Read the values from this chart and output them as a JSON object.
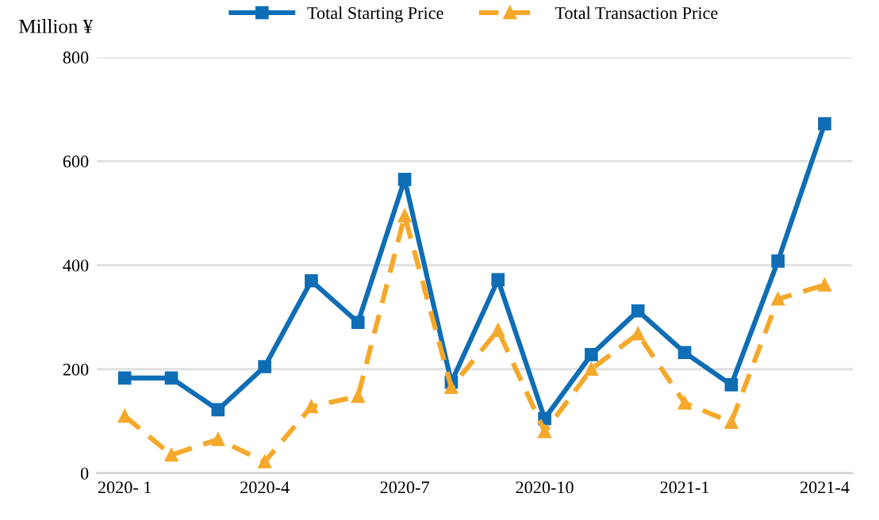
{
  "chart_data": {
    "type": "line",
    "ylabel": "Million ¥",
    "categories": [
      "2020- 1",
      null,
      null,
      "2020-4",
      null,
      null,
      "2020-7",
      null,
      null,
      "2020-10",
      null,
      null,
      "2021-1",
      null,
      null,
      "2021-4"
    ],
    "series": [
      {
        "name": "Total Starting Price",
        "color": "#0f6db5",
        "marker": "square",
        "line_style": "solid",
        "values": [
          183,
          183,
          122,
          205,
          370,
          290,
          565,
          175,
          372,
          105,
          228,
          312,
          232,
          170,
          408,
          672
        ]
      },
      {
        "name": "Total Transaction Price",
        "color": "#f5a82a",
        "marker": "triangle",
        "line_style": "dashed",
        "values": [
          110,
          35,
          65,
          22,
          128,
          148,
          495,
          165,
          275,
          80,
          200,
          268,
          135,
          98,
          335,
          362
        ]
      }
    ],
    "ylim": [
      0,
      800
    ],
    "yticks": [
      0,
      200,
      400,
      600,
      800
    ],
    "grid": "y",
    "legend": "top"
  }
}
